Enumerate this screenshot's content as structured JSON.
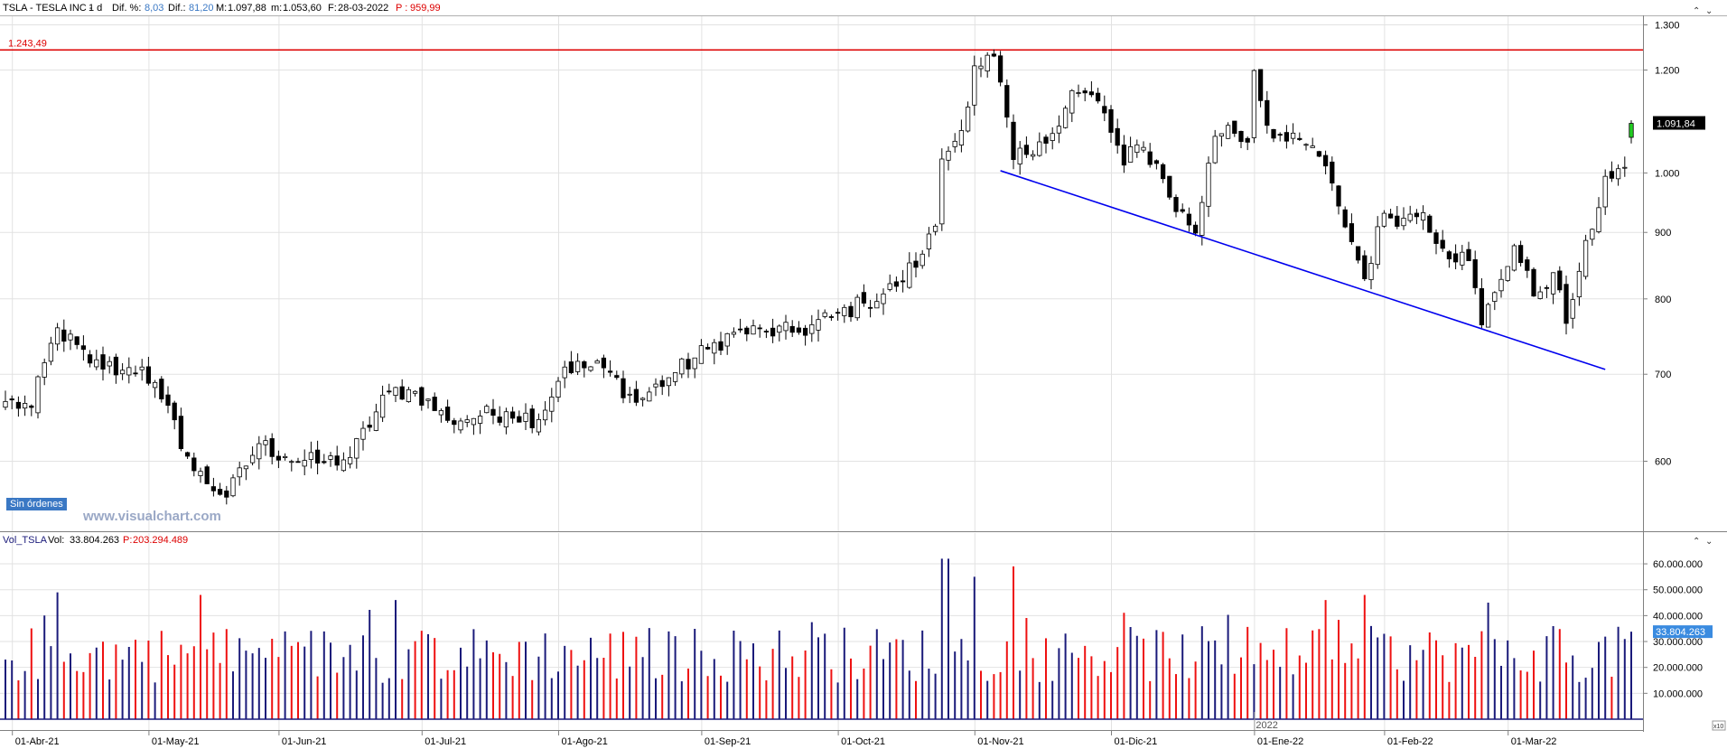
{
  "header": {
    "symbol": "TSLA - TESLA INC -",
    "timeframe": "1 d",
    "dif_pct_label": "Dif. %:",
    "dif_pct": "8,03",
    "dif_label": "Dif.:",
    "dif": "81,20",
    "max_label": "M:",
    "max": "1.097,88",
    "min_label": "m:",
    "min": "1.053,60",
    "date_label": "F:",
    "date": "28-03-2022",
    "prev_label": "P :",
    "prev": "959,99"
  },
  "resistance_label": "1.243,49",
  "last_price_tag": "1.091,84",
  "orders_badge": "Sin órdenes",
  "watermark": "www.visualchart.com",
  "volume_header": {
    "name": "Vol_TSLA",
    "vol_label": "Vol:",
    "vol": "33.804.263",
    "prev_label": "P:",
    "prev": "203.294.489"
  },
  "volume_tag": "33.804.263",
  "year_label": "2022",
  "corner_label": "x10",
  "colors": {
    "up_candle": "#ffffff",
    "down_candle": "#000000",
    "last_candle": "#22cc22",
    "resistance": "#dd0000",
    "trendline": "#0000ee",
    "vol_up": "#1a1a7a",
    "vol_down": "#ee1111",
    "grid": "#e2e2e2"
  },
  "chart_data": [
    {
      "type": "candlestick",
      "scale": "log",
      "ylim": [
        530,
        1320
      ],
      "yticks": [
        {
          "value": 1300,
          "label": "1.300"
        },
        {
          "value": 1200,
          "label": "1.200"
        },
        {
          "value": 1000,
          "label": "1.000"
        },
        {
          "value": 900,
          "label": "900"
        },
        {
          "value": 800,
          "label": "800"
        },
        {
          "value": 700,
          "label": "700"
        },
        {
          "value": 600,
          "label": "600"
        }
      ],
      "x_labels": [
        "01-Abr-21",
        "01-May-21",
        "01-Jun-21",
        "01-Jul-21",
        "01-Ago-21",
        "01-Sep-21",
        "01-Oct-21",
        "01-Nov-21",
        "01-Dic-21",
        "01-Ene-22",
        "01-Feb-22",
        "01-Mar-22"
      ],
      "close_anchors": [
        {
          "d": "2021-03-31",
          "v": 667
        },
        {
          "d": "2021-04-07",
          "v": 660
        },
        {
          "d": "2021-04-13",
          "v": 760
        },
        {
          "d": "2021-04-20",
          "v": 714
        },
        {
          "d": "2021-04-27",
          "v": 705
        },
        {
          "d": "2021-04-30",
          "v": 709
        },
        {
          "d": "2021-05-05",
          "v": 670
        },
        {
          "d": "2021-05-12",
          "v": 590
        },
        {
          "d": "2021-05-19",
          "v": 563
        },
        {
          "d": "2021-05-26",
          "v": 619
        },
        {
          "d": "2021-06-02",
          "v": 605
        },
        {
          "d": "2021-06-09",
          "v": 598
        },
        {
          "d": "2021-06-16",
          "v": 604
        },
        {
          "d": "2021-06-24",
          "v": 679
        },
        {
          "d": "2021-06-30",
          "v": 679
        },
        {
          "d": "2021-07-08",
          "v": 645
        },
        {
          "d": "2021-07-15",
          "v": 650
        },
        {
          "d": "2021-07-21",
          "v": 655
        },
        {
          "d": "2021-07-28",
          "v": 646
        },
        {
          "d": "2021-08-03",
          "v": 709
        },
        {
          "d": "2021-08-11",
          "v": 708
        },
        {
          "d": "2021-08-18",
          "v": 666
        },
        {
          "d": "2021-08-26",
          "v": 702
        },
        {
          "d": "2021-09-02",
          "v": 732
        },
        {
          "d": "2021-09-09",
          "v": 754
        },
        {
          "d": "2021-09-16",
          "v": 755
        },
        {
          "d": "2021-09-23",
          "v": 754
        },
        {
          "d": "2021-09-30",
          "v": 775
        },
        {
          "d": "2021-10-07",
          "v": 794
        },
        {
          "d": "2021-10-14",
          "v": 818
        },
        {
          "d": "2021-10-20",
          "v": 866
        },
        {
          "d": "2021-10-22",
          "v": 910
        },
        {
          "d": "2021-10-25",
          "v": 1025
        },
        {
          "d": "2021-10-28",
          "v": 1078
        },
        {
          "d": "2021-11-01",
          "v": 1209
        },
        {
          "d": "2021-11-04",
          "v": 1230
        },
        {
          "d": "2021-11-09",
          "v": 1024
        },
        {
          "d": "2021-11-12",
          "v": 1033
        },
        {
          "d": "2021-11-16",
          "v": 1054
        },
        {
          "d": "2021-11-22",
          "v": 1157
        },
        {
          "d": "2021-11-29",
          "v": 1136
        },
        {
          "d": "2021-12-03",
          "v": 1014
        },
        {
          "d": "2021-12-07",
          "v": 1051
        },
        {
          "d": "2021-12-10",
          "v": 1017
        },
        {
          "d": "2021-12-14",
          "v": 958
        },
        {
          "d": "2021-12-20",
          "v": 899
        },
        {
          "d": "2021-12-23",
          "v": 1067
        },
        {
          "d": "2021-12-28",
          "v": 1088
        },
        {
          "d": "2021-12-31",
          "v": 1056
        },
        {
          "d": "2022-01-03",
          "v": 1199
        },
        {
          "d": "2022-01-05",
          "v": 1088
        },
        {
          "d": "2022-01-10",
          "v": 1058
        },
        {
          "d": "2022-01-14",
          "v": 1049
        },
        {
          "d": "2022-01-18",
          "v": 1030
        },
        {
          "d": "2022-01-21",
          "v": 943
        },
        {
          "d": "2022-01-27",
          "v": 829
        },
        {
          "d": "2022-02-01",
          "v": 931
        },
        {
          "d": "2022-02-04",
          "v": 923
        },
        {
          "d": "2022-02-09",
          "v": 932
        },
        {
          "d": "2022-02-14",
          "v": 875
        },
        {
          "d": "2022-02-18",
          "v": 856
        },
        {
          "d": "2022-02-23",
          "v": 764
        },
        {
          "d": "2022-02-25",
          "v": 809
        },
        {
          "d": "2022-03-02",
          "v": 879
        },
        {
          "d": "2022-03-07",
          "v": 804
        },
        {
          "d": "2022-03-10",
          "v": 838
        },
        {
          "d": "2022-03-14",
          "v": 766
        },
        {
          "d": "2022-03-16",
          "v": 840
        },
        {
          "d": "2022-03-18",
          "v": 905
        },
        {
          "d": "2022-03-22",
          "v": 994
        },
        {
          "d": "2022-03-25",
          "v": 1010
        },
        {
          "d": "2022-03-28",
          "v": 1091.84
        }
      ],
      "last_candle": {
        "date": "2022-03-28",
        "open": 1065.1,
        "high": 1097.88,
        "low": 1053.6,
        "close": 1091.84
      },
      "resistance_level": 1243.49,
      "trendline": [
        {
          "d": "2021-11-05",
          "v": 1004
        },
        {
          "d": "2022-03-22",
          "v": 706
        }
      ]
    },
    {
      "type": "bar",
      "series": "volume",
      "ylim": [
        0,
        67000000
      ],
      "yticks": [
        {
          "value": 60000000,
          "label": "60.000.000"
        },
        {
          "value": 50000000,
          "label": "50.000.000"
        },
        {
          "value": 40000000,
          "label": "40.000.000"
        },
        {
          "value": 30000000,
          "label": "30.000.000"
        },
        {
          "value": 20000000,
          "label": "20.000.000"
        },
        {
          "value": 10000000,
          "label": "10.000.000"
        }
      ],
      "last_volume": 33804263,
      "spikes": [
        {
          "d": "2021-04-13",
          "v": 49000000
        },
        {
          "d": "2021-05-13",
          "v": 48000000
        },
        {
          "d": "2021-06-25",
          "v": 46000000
        },
        {
          "d": "2021-10-25",
          "v": 62000000
        },
        {
          "d": "2021-10-26",
          "v": 62000000
        },
        {
          "d": "2021-11-01",
          "v": 55000000
        },
        {
          "d": "2021-11-09",
          "v": 59000000
        },
        {
          "d": "2022-01-19",
          "v": 46000000
        },
        {
          "d": "2022-01-27",
          "v": 48000000
        },
        {
          "d": "2022-02-24",
          "v": 45000000
        }
      ]
    }
  ]
}
